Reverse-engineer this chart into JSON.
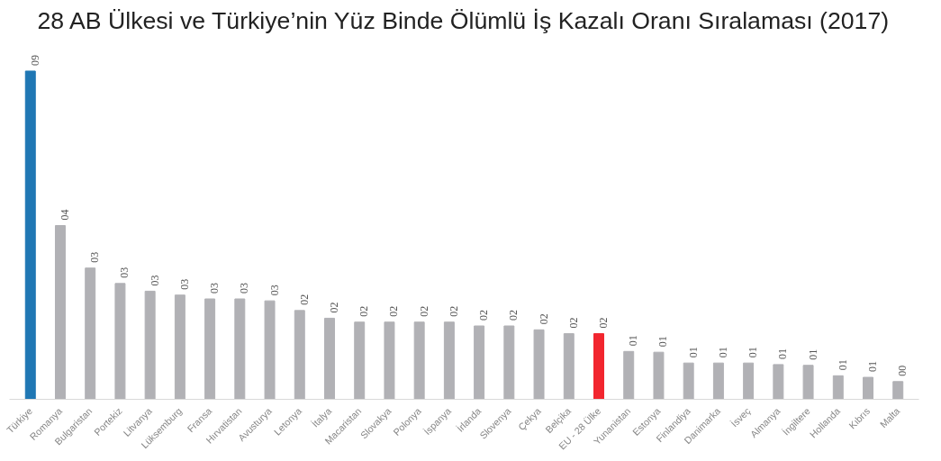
{
  "chart_data": {
    "type": "bar",
    "title": "28 AB Ülkesi ve Türkiye’nin Yüz Binde Ölümlü İş Kazalı Oranı Sıralaması (2017)",
    "tick_labels": "x",
    "categories": [
      "Türkiye",
      "Romanya",
      "Bulgaristan",
      "Portekiz",
      "Litvanya",
      "Lüksemburg",
      "Fransa",
      "Hırvatistan",
      "Avusturya",
      "Letonya",
      "İtalya",
      "Macaristan",
      "Slovakya",
      "Polonya",
      "İspanya",
      "İrlanda",
      "Slovenya",
      "Çekya",
      "Belçika",
      "EU - 28 Ülke",
      "Yunanistan",
      "Estonya",
      "Finlandiya",
      "Danimarka",
      "İsveç",
      "Almanya",
      "İngiltere",
      "Hollanda",
      "Kıbrıs",
      "Malta"
    ],
    "values": [
      8.5,
      4.5,
      3.4,
      3.0,
      2.8,
      2.7,
      2.6,
      2.6,
      2.55,
      2.3,
      2.1,
      2.0,
      2.0,
      2.0,
      2.0,
      1.9,
      1.9,
      1.8,
      1.7,
      1.7,
      1.24,
      1.22,
      0.94,
      0.94,
      0.94,
      0.9,
      0.88,
      0.61,
      0.57,
      0.46
    ],
    "value_labels": [
      "09",
      "04",
      "03",
      "03",
      "03",
      "03",
      "03",
      "03",
      "03",
      "02",
      "02",
      "02",
      "02",
      "02",
      "02",
      "02",
      "02",
      "02",
      "02",
      "02",
      "01",
      "01",
      "01",
      "01",
      "01",
      "01",
      "01",
      "01",
      "01",
      "00"
    ],
    "colors": [
      "#1f77b4",
      "#b1b1b5",
      "#b1b1b5",
      "#b1b1b5",
      "#b1b1b5",
      "#b1b1b5",
      "#b1b1b5",
      "#b1b1b5",
      "#b1b1b5",
      "#b1b1b5",
      "#b1b1b5",
      "#b1b1b5",
      "#b1b1b5",
      "#b1b1b5",
      "#b1b1b5",
      "#b1b1b5",
      "#b1b1b5",
      "#b1b1b5",
      "#b1b1b5",
      "#f2262f",
      "#b1b1b5",
      "#b1b1b5",
      "#b1b1b5",
      "#b1b1b5",
      "#b1b1b5",
      "#b1b1b5",
      "#b1b1b5",
      "#b1b1b5",
      "#b1b1b5",
      "#b1b1b5"
    ],
    "grid": false
  }
}
